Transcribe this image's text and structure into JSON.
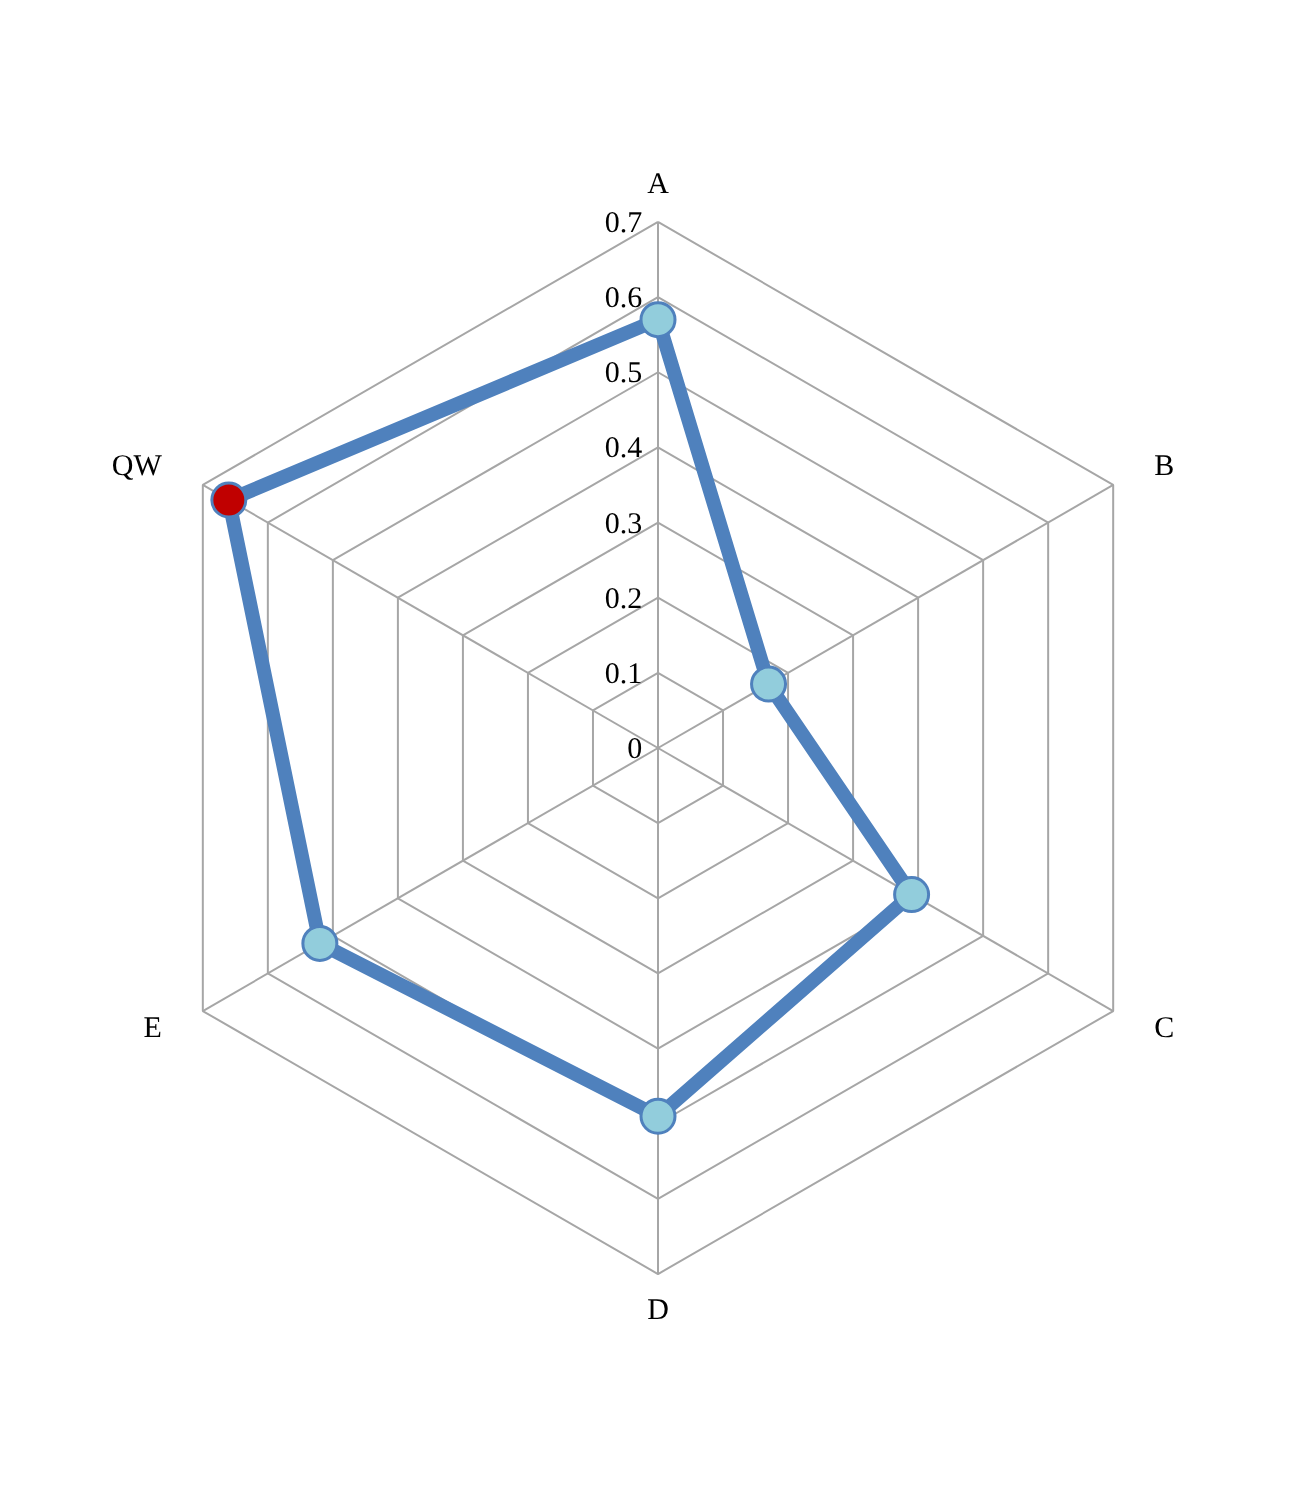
{
  "chart_data": {
    "type": "radar",
    "categories": [
      "A",
      "B",
      "C",
      "D",
      "E",
      "QW"
    ],
    "series": [
      {
        "color": "#4f81bd",
        "values": [
          0.57,
          0.17,
          0.39,
          0.49,
          0.52,
          0.66
        ],
        "colors": [
          "#92cddc",
          "#92cddc",
          "#92cddc",
          "#92cddc",
          "#92cddc",
          "#c00000"
        ]
      }
    ],
    "ylim": [
      0,
      0.7
    ],
    "yticks": [
      0,
      0.1,
      0.2,
      0.3,
      0.4,
      0.5,
      0.6,
      0.7
    ],
    "marker": "circle",
    "grid": true
  }
}
